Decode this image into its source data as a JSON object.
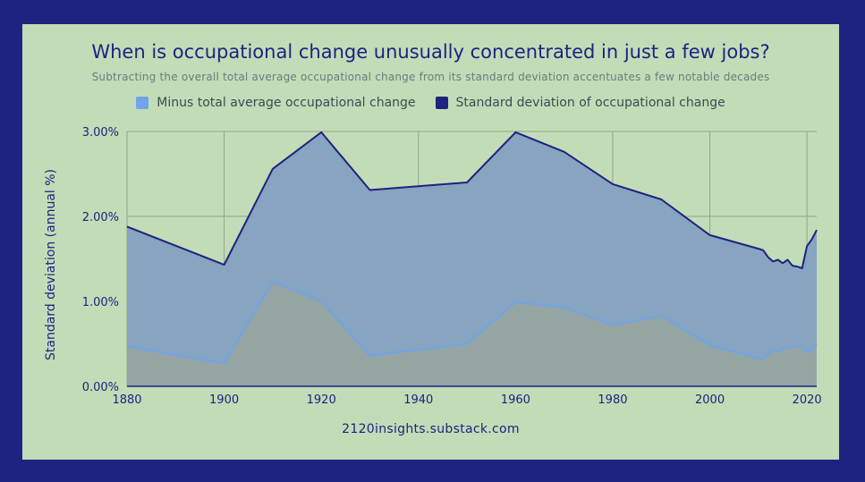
{
  "chart_data": {
    "type": "area",
    "title": "When is occupational change unusually concentrated in just a few jobs?",
    "subtitle": "Subtracting the overall total average occupational change from its standard deviation accentuates a few notable decades",
    "ylabel": "Standard deviation (annual %)",
    "xlabel": "",
    "source": "2120insights.substack.com",
    "xlim": [
      1880,
      2022
    ],
    "ylim": [
      0,
      3
    ],
    "x_ticks": [
      1880,
      1900,
      1920,
      1940,
      1960,
      1980,
      2000,
      2020
    ],
    "x_tick_labels": [
      "1880",
      "1900",
      "1920",
      "1940",
      "1960",
      "1980",
      "2000",
      "2020"
    ],
    "y_ticks": [
      0,
      1,
      2,
      3
    ],
    "y_tick_labels": [
      "0.00%",
      "1.00%",
      "2.00%",
      "3.00%"
    ],
    "legend_position": "top-center",
    "grid": true,
    "series": [
      {
        "name": "Standard deviation of occupational change",
        "color": "#1f2280",
        "fill": "#87a4c0",
        "x": [
          1880,
          1900,
          1910,
          1920,
          1930,
          1950,
          1960,
          1970,
          1980,
          1990,
          2000,
          2010,
          2011,
          2012,
          2013,
          2014,
          2015,
          2016,
          2017,
          2018,
          2019,
          2020,
          2021,
          2022
        ],
        "values": [
          1.88,
          1.43,
          2.56,
          2.99,
          2.31,
          2.4,
          2.99,
          2.76,
          2.38,
          2.2,
          1.78,
          1.62,
          1.6,
          1.52,
          1.47,
          1.49,
          1.45,
          1.49,
          1.42,
          1.41,
          1.39,
          1.65,
          1.73,
          1.84
        ]
      },
      {
        "name": "Minus total average occupational change",
        "color": "#70a3e8",
        "fill": "#94a5a4",
        "x": [
          1880,
          1900,
          1910,
          1920,
          1930,
          1950,
          1960,
          1970,
          1980,
          1990,
          2000,
          2010,
          2011,
          2012,
          2013,
          2014,
          2015,
          2016,
          2017,
          2018,
          2019,
          2020,
          2021,
          2022
        ],
        "values": [
          0.47,
          0.27,
          1.23,
          1.0,
          0.36,
          0.5,
          0.99,
          0.93,
          0.72,
          0.83,
          0.48,
          0.33,
          0.32,
          0.38,
          0.42,
          0.41,
          0.44,
          0.46,
          0.46,
          0.48,
          0.46,
          0.41,
          0.43,
          0.5
        ]
      }
    ]
  },
  "legend": [
    {
      "label": "Minus total average occupational change",
      "color": "#70a3e8"
    },
    {
      "label": "Standard deviation of occupational change",
      "color": "#1f2280"
    }
  ]
}
